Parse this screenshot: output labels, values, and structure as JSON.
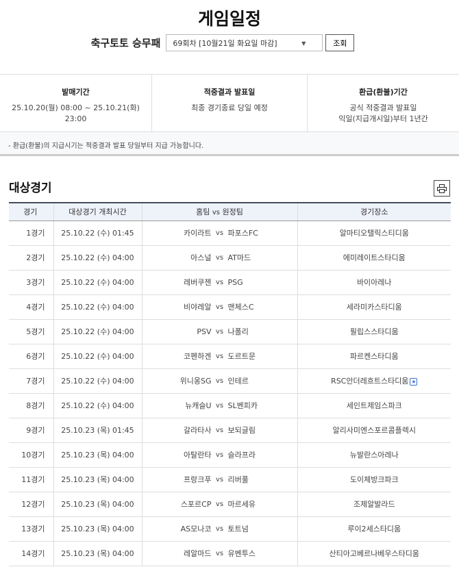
{
  "page": {
    "title": "게임일정"
  },
  "selector": {
    "label": "축구토토 승무패",
    "selected": "69회차 [10월21일 화요일 마감]",
    "button": "조회"
  },
  "info": [
    {
      "title": "발매기간",
      "lines": [
        "25.10.20(월) 08:00 ~ 25.10.21(화) 23:00"
      ]
    },
    {
      "title": "적중결과 발표일",
      "lines": [
        "최종 경기종료 당일 예정"
      ]
    },
    {
      "title": "환급(환불)기간",
      "lines": [
        "공식 적중결과 발표일",
        "익일(지급개시일)부터 1년간"
      ]
    }
  ],
  "notice": "- 환급(환불)의 지급시기는 적중결과 발표 당일부터 지급 가능합니다.",
  "section": {
    "title": "대상경기",
    "print_icon": "printer-icon"
  },
  "table": {
    "headers": [
      "경기",
      "대상경기 개최시간",
      "홈팀",
      "vs",
      "원정팀",
      "경기장소"
    ],
    "rows": [
      {
        "no": "1경기",
        "time": "25.10.22 (수) 01:45",
        "home": "카이라트",
        "vs": "vs",
        "away": "파포스FC",
        "venue": "알마티오탤릭스티디움"
      },
      {
        "no": "2경기",
        "time": "25.10.22 (수) 04:00",
        "home": "아스널",
        "vs": "vs",
        "away": "AT마드",
        "venue": "에미레이트스타디움"
      },
      {
        "no": "3경기",
        "time": "25.10.22 (수) 04:00",
        "home": "레버쿠젠",
        "vs": "vs",
        "away": "PSG",
        "venue": "바이아레나"
      },
      {
        "no": "4경기",
        "time": "25.10.22 (수) 04:00",
        "home": "비야레알",
        "vs": "vs",
        "away": "맨체스C",
        "venue": "세라미카스타디움"
      },
      {
        "no": "5경기",
        "time": "25.10.22 (수) 04:00",
        "home": "PSV",
        "vs": "vs",
        "away": "나폴리",
        "venue": "필립스스타디움"
      },
      {
        "no": "6경기",
        "time": "25.10.22 (수) 04:00",
        "home": "코펜하겐",
        "vs": "vs",
        "away": "도르트문",
        "venue": "파르켄스타디움"
      },
      {
        "no": "7경기",
        "time": "25.10.22 (수) 04:00",
        "home": "위니옹SG",
        "vs": "vs",
        "away": "인테르",
        "venue": "RSC안더레흐트스타디움",
        "venue_icon": "star-icon"
      },
      {
        "no": "8경기",
        "time": "25.10.22 (수) 04:00",
        "home": "뉴캐슬U",
        "vs": "vs",
        "away": "SL벤피카",
        "venue": "세인트제임스파크"
      },
      {
        "no": "9경기",
        "time": "25.10.23 (목) 01:45",
        "home": "갈라타사",
        "vs": "vs",
        "away": "보되글림",
        "venue": "알리사미엔스포르콤플렉시"
      },
      {
        "no": "10경기",
        "time": "25.10.23 (목) 04:00",
        "home": "아탈란타",
        "vs": "vs",
        "away": "슬라프라",
        "venue": "뉴발란스아레나"
      },
      {
        "no": "11경기",
        "time": "25.10.23 (목) 04:00",
        "home": "프랑크푸",
        "vs": "vs",
        "away": "리버풀",
        "venue": "도이체방크파크"
      },
      {
        "no": "12경기",
        "time": "25.10.23 (목) 04:00",
        "home": "스포르CP",
        "vs": "vs",
        "away": "마르세유",
        "venue": "조제알발라드"
      },
      {
        "no": "13경기",
        "time": "25.10.23 (목) 04:00",
        "home": "AS모나코",
        "vs": "vs",
        "away": "토트넘",
        "venue": "루이2세스타디움"
      },
      {
        "no": "14경기",
        "time": "25.10.23 (목) 04:00",
        "home": "레알마드",
        "vs": "vs",
        "away": "유벤투스",
        "venue": "산티아고베르나베우스타디움"
      }
    ]
  }
}
